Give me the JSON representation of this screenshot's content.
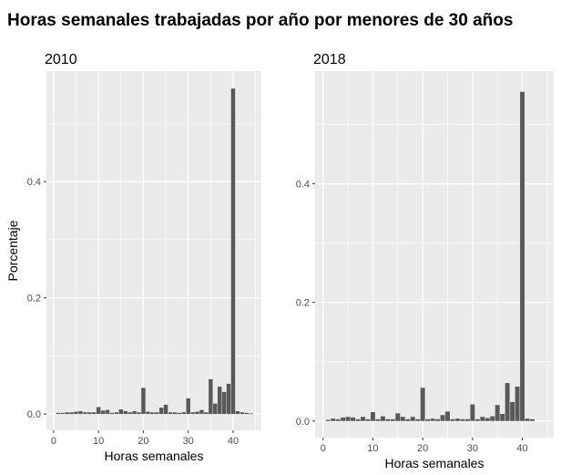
{
  "title": "Horas semanales trabajadas por año por menores de 30 años",
  "chart_data": [
    {
      "type": "bar",
      "title": "2010",
      "xlabel": "Horas semanales",
      "ylabel": "Porcentaje",
      "xlim": [
        -1.6,
        46.3
      ],
      "ylim": [
        -0.028,
        0.59
      ],
      "xticks": [
        0,
        10,
        20,
        30,
        40
      ],
      "yticks": [
        0.0,
        0.2,
        0.4
      ],
      "ytick_labels": [
        "0.0",
        "0.2",
        "0.4"
      ],
      "grid": true,
      "x": [
        1,
        2,
        3,
        4,
        5,
        6,
        7,
        8,
        9,
        10,
        11,
        12,
        13,
        14,
        15,
        16,
        17,
        18,
        19,
        20,
        21,
        22,
        23,
        24,
        25,
        26,
        27,
        28,
        29,
        30,
        31,
        32,
        33,
        34,
        35,
        36,
        37,
        38,
        39,
        40,
        41,
        42,
        43,
        44
      ],
      "values": [
        0.002,
        0.002,
        0.003,
        0.003,
        0.004,
        0.005,
        0.003,
        0.003,
        0.003,
        0.012,
        0.006,
        0.007,
        0.002,
        0.003,
        0.008,
        0.005,
        0.003,
        0.005,
        0.003,
        0.045,
        0.004,
        0.003,
        0.003,
        0.011,
        0.016,
        0.003,
        0.003,
        0.002,
        0.003,
        0.027,
        0.003,
        0.004,
        0.007,
        0.003,
        0.06,
        0.018,
        0.047,
        0.038,
        0.052,
        0.56,
        0.005,
        0.003,
        0.002,
        0.001
      ]
    },
    {
      "type": "bar",
      "title": "2018",
      "xlabel": "Horas semanales",
      "ylabel": "",
      "xlim": [
        -1.6,
        46.3
      ],
      "ylim": [
        -0.028,
        0.59
      ],
      "xticks": [
        0,
        10,
        20,
        30,
        40
      ],
      "yticks": [
        0.0,
        0.2,
        0.4
      ],
      "ytick_labels": [
        "0.0",
        "0.2",
        "0.4"
      ],
      "grid": true,
      "x": [
        1,
        2,
        3,
        4,
        5,
        6,
        7,
        8,
        9,
        10,
        11,
        12,
        13,
        14,
        15,
        16,
        17,
        18,
        19,
        20,
        21,
        22,
        23,
        24,
        25,
        26,
        27,
        28,
        29,
        30,
        31,
        32,
        33,
        34,
        35,
        36,
        37,
        38,
        39,
        40,
        41,
        42
      ],
      "values": [
        0.002,
        0.004,
        0.003,
        0.006,
        0.007,
        0.006,
        0.003,
        0.007,
        0.003,
        0.015,
        0.003,
        0.008,
        0.003,
        0.003,
        0.013,
        0.007,
        0.003,
        0.007,
        0.003,
        0.056,
        0.003,
        0.004,
        0.003,
        0.01,
        0.016,
        0.003,
        0.004,
        0.003,
        0.003,
        0.028,
        0.003,
        0.007,
        0.005,
        0.008,
        0.027,
        0.012,
        0.064,
        0.032,
        0.058,
        0.555,
        0.004,
        0.003
      ]
    }
  ]
}
